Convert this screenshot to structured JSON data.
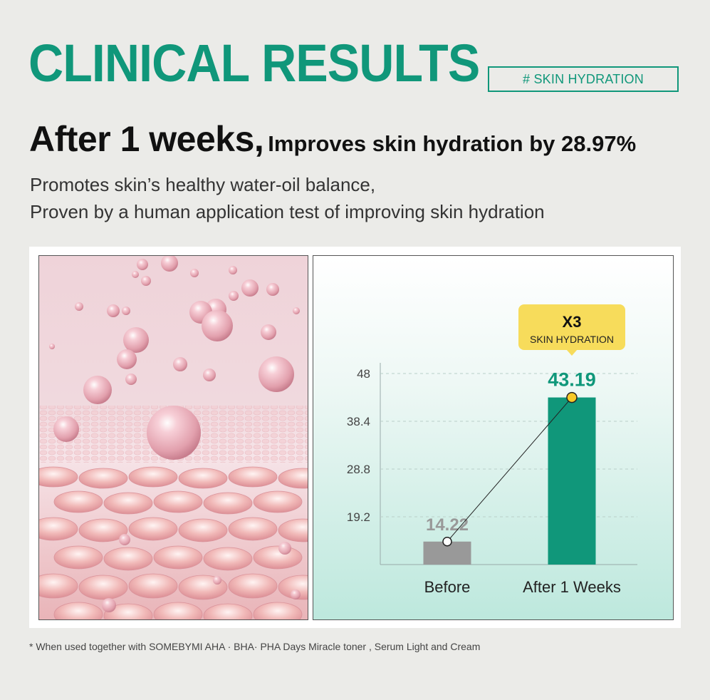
{
  "header": {
    "title": "CLINICAL RESULTS",
    "tag": "# SKIN HYDRATION",
    "headline_big": "After 1 weeks,",
    "headline_small": "Improves skin hydration by 28.97%",
    "desc_line1": "Promotes skin’s healthy water-oil balance,",
    "desc_line2": "Proven by a human application test of improving skin hydration"
  },
  "footnote": "* When used together with SOMEBYMI AHA · BHA· PHA Days Miracle toner , Serum Light and Cream",
  "colors": {
    "accent": "#10977a",
    "bar_before": "#999999",
    "bar_after": "#10977a",
    "callout": "#f7dc5b",
    "chart_bg_top": "#ffffff",
    "chart_bg_bottom": "#bde8dd"
  },
  "illustration": {
    "icon": "pink-bubbles-skin-layer-illustration"
  },
  "chart_data": {
    "type": "bar",
    "categories": [
      "Before",
      "After 1 Weeks"
    ],
    "values": [
      14.22,
      43.19
    ],
    "value_labels": [
      "14.22",
      "43.19"
    ],
    "yticks": [
      "48",
      "38.4",
      "28.8",
      "19.2"
    ],
    "ytick_values": [
      48,
      38.4,
      28.8,
      19.2
    ],
    "ylim": [
      9.6,
      52
    ],
    "grid": true,
    "connector_line": true,
    "callout": {
      "main": "X3",
      "sub": "SKIN HYDRATION"
    },
    "title": "",
    "xlabel": "",
    "ylabel": ""
  }
}
